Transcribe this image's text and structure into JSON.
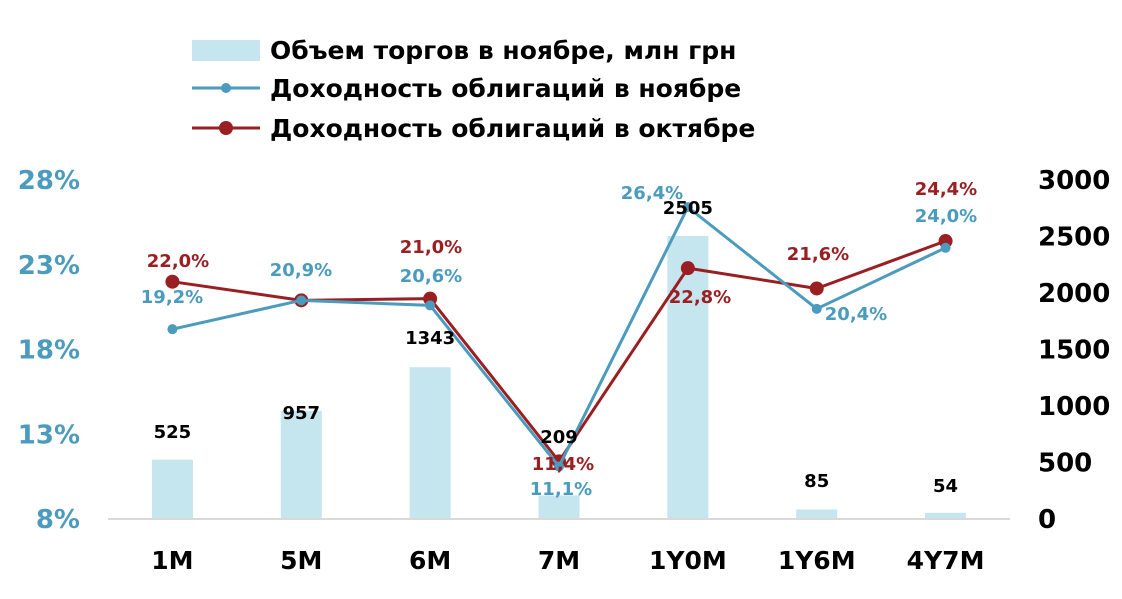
{
  "chart_data": {
    "type": "bar+line",
    "categories": [
      "1M",
      "5M",
      "6M",
      "7M",
      "1Y0M",
      "1Y6M",
      "4Y7M"
    ],
    "legend": {
      "position": "top",
      "entries": [
        "Объем торгов в ноябре, млн грн",
        "Доходность облигаций в ноябре",
        "Доходность облигаций в октябре"
      ]
    },
    "colors": {
      "bars": "#c5e5ef",
      "nov": "#4a9bbd",
      "oct": "#9a1f22",
      "axis": "#d9d9d9"
    },
    "y_left": {
      "ylim": [
        8,
        28
      ],
      "ticks": [
        8,
        13,
        18,
        23,
        28
      ],
      "tick_labels": [
        "8%",
        "13%",
        "18%",
        "23%",
        "28%"
      ]
    },
    "y_right": {
      "ylim": [
        0,
        3000
      ],
      "ticks": [
        0,
        500,
        1000,
        1500,
        2000,
        2500,
        3000
      ],
      "tick_labels": [
        "0",
        "500",
        "1000",
        "1500",
        "2000",
        "2500",
        "3000"
      ]
    },
    "series": [
      {
        "name": "Объем торгов в ноябре, млн грн",
        "kind": "bar",
        "axis": "right",
        "values": [
          525,
          957,
          1343,
          209,
          2505,
          85,
          54
        ],
        "labels": [
          "525",
          "957",
          "1343",
          "209",
          "2505",
          "85",
          "54"
        ]
      },
      {
        "name": "Доходность облигаций в ноябре",
        "kind": "line",
        "axis": "left",
        "values": [
          19.2,
          20.9,
          20.6,
          11.1,
          26.4,
          20.4,
          24.0
        ],
        "labels": [
          "19,2%",
          "20,9%",
          "20,6%",
          "11,1%",
          "26,4%",
          "20,4%",
          "24,0%"
        ]
      },
      {
        "name": "Доходность облигаций в октябре",
        "kind": "line",
        "axis": "left",
        "values": [
          22.0,
          20.9,
          21.0,
          11.4,
          22.8,
          21.6,
          24.4
        ],
        "labels": [
          "22,0%",
          "",
          "21,0%",
          "11,4%",
          "22,8%",
          "21,6%",
          "24,4%"
        ]
      }
    ],
    "grid": false
  }
}
